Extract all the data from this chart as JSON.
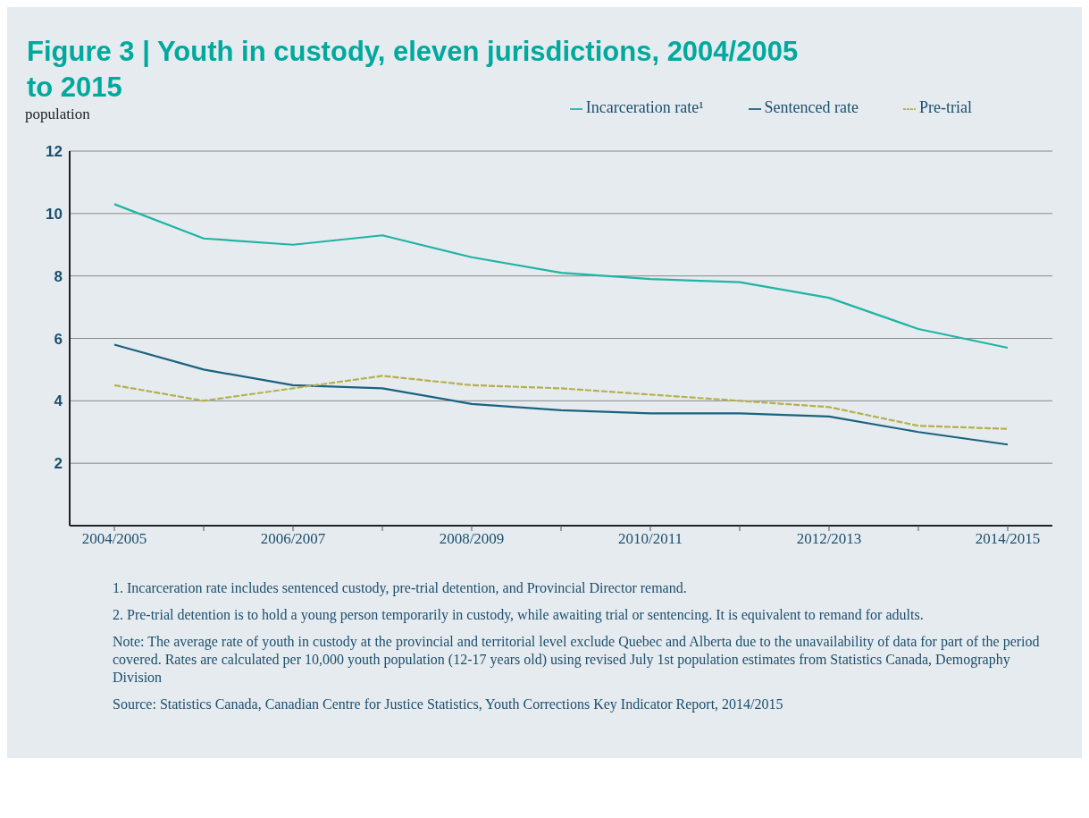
{
  "chart_data": {
    "type": "line",
    "title": "Figure 3 | Youth in custody, eleven jurisdictions, 2004/2005 to 2015",
    "ylabel": "population",
    "categories": [
      "2004/2005",
      null,
      "2006/2007",
      null,
      "2008/2009",
      null,
      "2010/2011",
      null,
      "2012/2013",
      null,
      "2014/2015"
    ],
    "series": [
      {
        "name": "Incarceration rate¹",
        "color": "#1fb5a3",
        "line_style": "solid",
        "values": [
          10.3,
          9.2,
          9.0,
          9.3,
          8.6,
          8.1,
          7.9,
          7.8,
          7.3,
          6.3,
          5.7
        ]
      },
      {
        "name": "Sentenced rate",
        "color": "#1a637f",
        "line_style": "solid",
        "values": [
          5.8,
          5.0,
          4.5,
          4.4,
          3.9,
          3.7,
          3.6,
          3.6,
          3.5,
          3.0,
          2.6
        ]
      },
      {
        "name": "Pre-trial",
        "color": "#b5b04d",
        "line_style": "dashed",
        "values": [
          4.5,
          4.0,
          4.4,
          4.8,
          4.5,
          4.4,
          4.2,
          4.0,
          3.8,
          3.2,
          3.1
        ]
      }
    ],
    "ylim": [
      0,
      12
    ],
    "yticks": [
      2,
      4,
      6,
      8,
      10,
      12
    ],
    "grid": "y",
    "legend": "top right",
    "marker": "none",
    "annotations": [
      "1. Incarceration rate includes sentenced custody, pre-trial detention, and Provincial Director remand.",
      "2. Pre-trial detention is to hold a young person temporarily in custody, while awaiting trial or sentencing. It is equivalent to remand for adults.",
      "Note: The average rate of youth in custody at the provincial and territorial level exclude Quebec and Alberta due to the unavailability of data for part of the period covered. Rates are calculated per 10,000 youth population (12-17 years old) using revised July 1st population estimates from Statistics Canada, Demography Division",
      "Source: Statistics Canada, Canadian Centre for Justice Statistics, Youth Corrections Key Indicator Report, 2014/2015"
    ]
  }
}
